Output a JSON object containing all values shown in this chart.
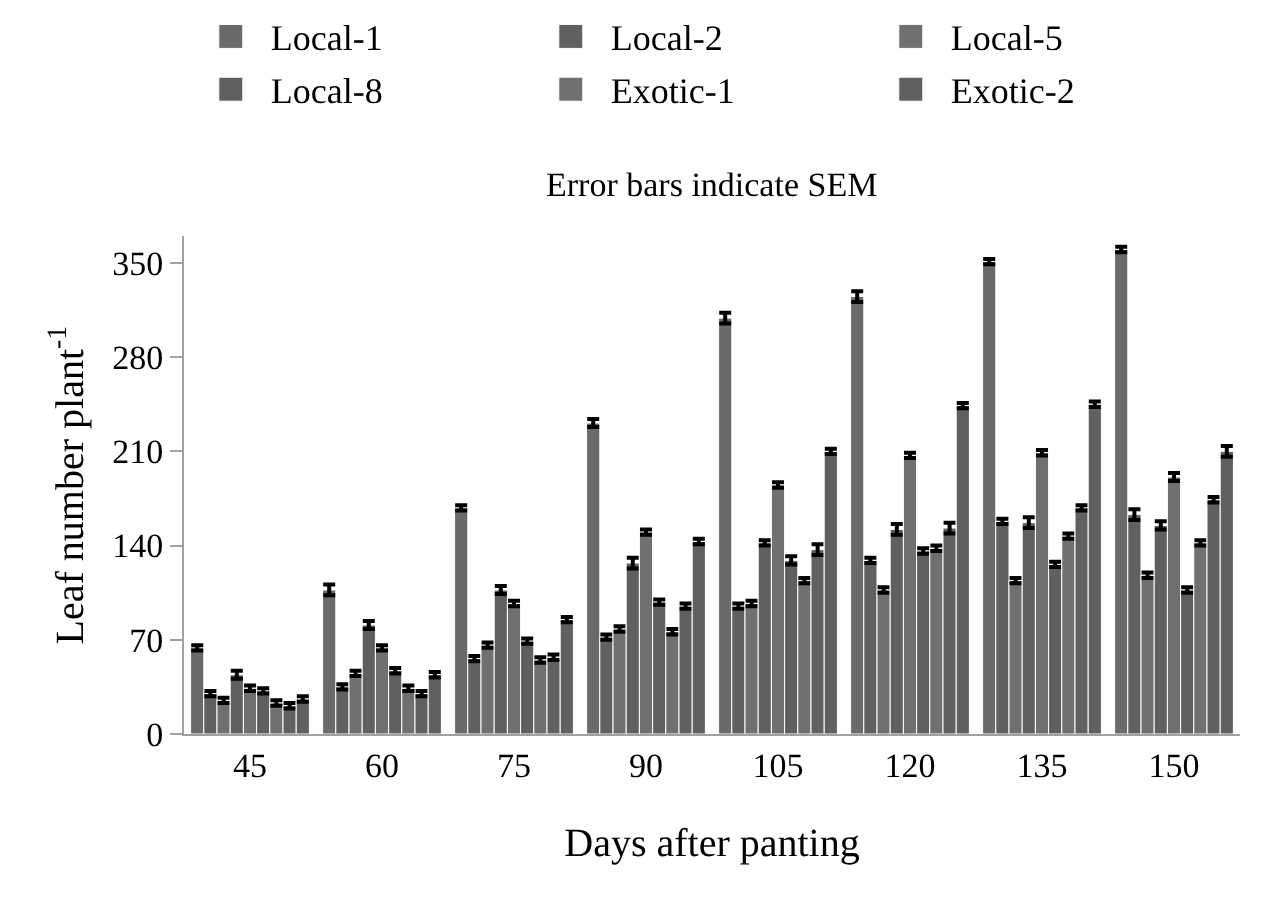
{
  "chart_data": {
    "type": "bar",
    "subtitle": "Error bars indicate SEM",
    "xlabel": "Days after panting",
    "ylabel": "Leaf number plant$^{-1}$",
    "categories": [
      "45",
      "60",
      "75",
      "90",
      "105",
      "120",
      "135",
      "150"
    ],
    "series": [
      {
        "name": "Local-1",
        "color": "#6a6a6a",
        "values": [
          64,
          107,
          168,
          231,
          309,
          325,
          351,
          360
        ],
        "errors": [
          2,
          4,
          2,
          3,
          4,
          4,
          2,
          2
        ]
      },
      {
        "name": "Local-2",
        "color": "#606060",
        "values": [
          30,
          35,
          56,
          72,
          95,
          129,
          158,
          163
        ],
        "errors": [
          2,
          2,
          2,
          2,
          2,
          2,
          2,
          4
        ]
      },
      {
        "name": "Local-5",
        "color": "#707070",
        "values": [
          25,
          45,
          66,
          78,
          97,
          107,
          114,
          118
        ],
        "errors": [
          2,
          2,
          2,
          2,
          2,
          2,
          2,
          2
        ]
      },
      {
        "name": "Local-8",
        "color": "#606060",
        "values": [
          44,
          81,
          107,
          127,
          142,
          152,
          157,
          155
        ],
        "errors": [
          3,
          3,
          3,
          4,
          2,
          4,
          4,
          3
        ]
      },
      {
        "name": "Exotic-1",
        "color": "#707070",
        "values": [
          34,
          64,
          97,
          150,
          185,
          207,
          209,
          191
        ],
        "errors": [
          2,
          2,
          2,
          2,
          2,
          2,
          2,
          3
        ]
      },
      {
        "name": "Exotic-2",
        "color": "#606060",
        "values": [
          32,
          47,
          69,
          98,
          129,
          136,
          126,
          107
        ],
        "errors": [
          2,
          2,
          2,
          2,
          3,
          2,
          2,
          2
        ]
      },
      {
        "color": "#707070",
        "values": [
          23,
          34,
          55,
          76,
          114,
          138,
          147,
          142
        ],
        "errors": [
          2,
          2,
          2,
          2,
          2,
          2,
          2,
          2
        ]
      },
      {
        "color": "#606060",
        "values": [
          21,
          30,
          57,
          95,
          137,
          153,
          168,
          174
        ],
        "errors": [
          2,
          2,
          2,
          2,
          4,
          4,
          2,
          2
        ]
      },
      {
        "color": "#606060",
        "values": [
          26,
          44,
          85,
          143,
          210,
          244,
          245,
          210
        ],
        "errors": [
          2,
          2,
          2,
          2,
          2,
          2,
          2,
          4
        ]
      }
    ],
    "ylim": [
      0,
      370
    ],
    "yticks": [
      0,
      70,
      140,
      210,
      280,
      350
    ],
    "legend": "top"
  }
}
